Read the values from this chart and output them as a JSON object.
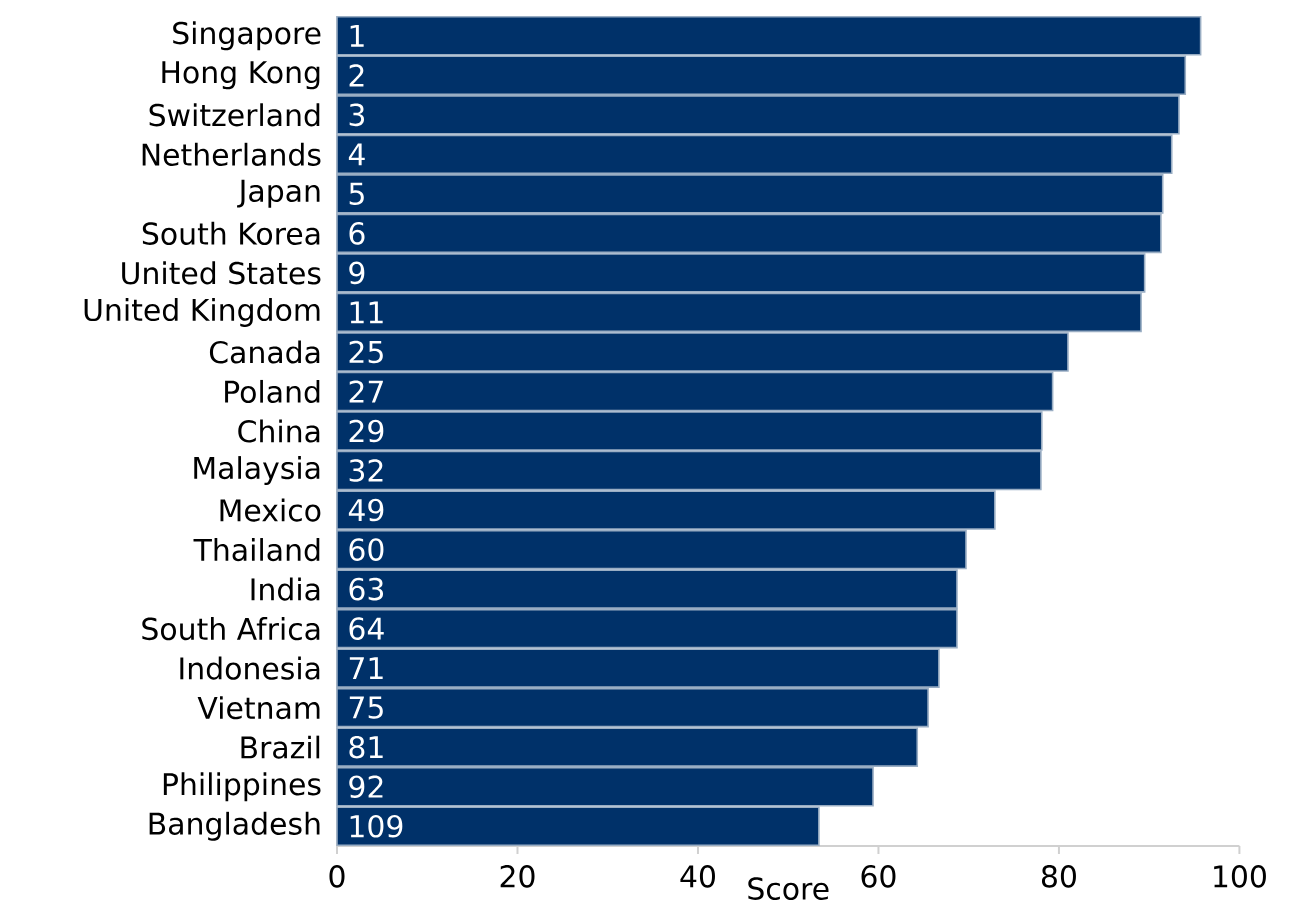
{
  "chart_data": {
    "type": "bar",
    "orientation": "horizontal",
    "xlabel": "Score",
    "categories": [
      "Singapore",
      "Hong Kong",
      "Switzerland",
      "Netherlands",
      "Japan",
      "South Korea",
      "United States",
      "United Kingdom",
      "Canada",
      "Poland",
      "China",
      "Malaysia",
      "Mexico",
      "Thailand",
      "India",
      "South Africa",
      "Indonesia",
      "Vietnam",
      "Brazil",
      "Philippines",
      "Bangladesh"
    ],
    "values": [
      95.7,
      94.0,
      93.3,
      92.5,
      91.5,
      91.3,
      89.5,
      89.1,
      81.0,
      79.3,
      78.1,
      78.0,
      72.9,
      69.7,
      68.7,
      68.7,
      66.7,
      65.5,
      64.3,
      59.4,
      53.4
    ],
    "annotations": [
      "1",
      "2",
      "3",
      "4",
      "5",
      "6",
      "9",
      "11",
      "25",
      "27",
      "29",
      "32",
      "49",
      "60",
      "63",
      "64",
      "71",
      "75",
      "81",
      "92",
      "109"
    ],
    "color": "#003169",
    "xlim": [
      0,
      100
    ],
    "xticks": [
      0,
      20,
      40,
      60,
      80,
      100
    ]
  }
}
